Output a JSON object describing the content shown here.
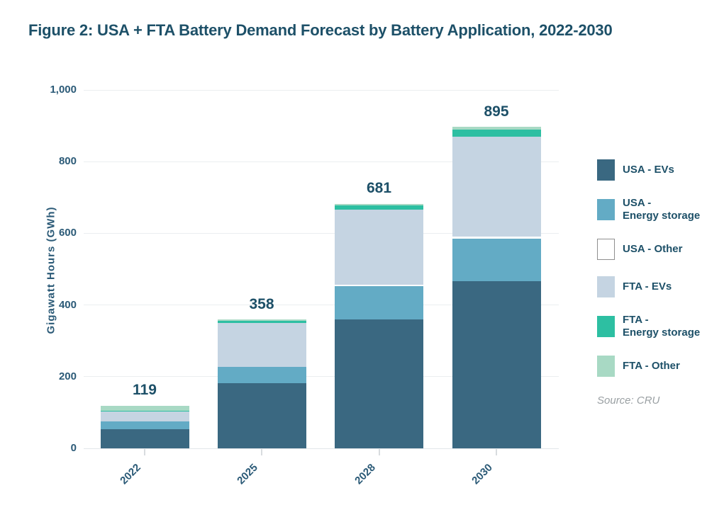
{
  "title": "Figure 2: USA + FTA Battery Demand Forecast by Battery Application, 2022-2030",
  "colors": {
    "title_text": "#1d5068",
    "axis_text": "#2b5a77",
    "grid": "#ebeef0",
    "baseline": "#e2e6e9",
    "tick": "#d8dcdf",
    "source_text": "#9aa0a3",
    "other_border": "#8f8f8f"
  },
  "chart_data": {
    "type": "bar",
    "stacked": true,
    "title": "Figure 2: USA + FTA Battery Demand Forecast by Battery Application, 2022-2030",
    "categories": [
      "2022",
      "2025",
      "2028",
      "2030"
    ],
    "series": [
      {
        "name": "USA - EVs",
        "color": "#3a6881",
        "values": [
          53,
          181,
          360,
          466
        ]
      },
      {
        "name": "USA - Energy storage",
        "color": "#63abc5",
        "values": [
          22,
          46,
          93,
          118
        ]
      },
      {
        "name": "USA - Other",
        "color": "#ffffff",
        "values": [
          0,
          0,
          4,
          6
        ]
      },
      {
        "name": "FTA - EVs",
        "color": "#c5d4e2",
        "values": [
          28,
          122,
          209,
          278
        ]
      },
      {
        "name": "FTA - Energy storage",
        "color": "#2dbfa2",
        "values": [
          2,
          6,
          11,
          20
        ]
      },
      {
        "name": "FTA - Other",
        "color": "#a8d9c4",
        "values": [
          14,
          3,
          4,
          7
        ]
      }
    ],
    "totals": [
      119,
      358,
      681,
      895
    ],
    "xlabel": "",
    "ylabel": "Gigawatt Hours (GWh)",
    "ylim": [
      0,
      1000
    ],
    "yticks": [
      0,
      200,
      400,
      600,
      800,
      1000
    ],
    "ytick_labels": [
      "0",
      "200",
      "400",
      "600",
      "800",
      "1,000"
    ],
    "grid": true,
    "legend_position": "right"
  },
  "legend": {
    "items": [
      {
        "label": "USA - EVs"
      },
      {
        "label": "USA -\nEnergy storage"
      },
      {
        "label": "USA - Other"
      },
      {
        "label": "FTA - EVs"
      },
      {
        "label": "FTA -\nEnergy storage"
      },
      {
        "label": "FTA - Other"
      }
    ],
    "source": "Source: CRU"
  }
}
